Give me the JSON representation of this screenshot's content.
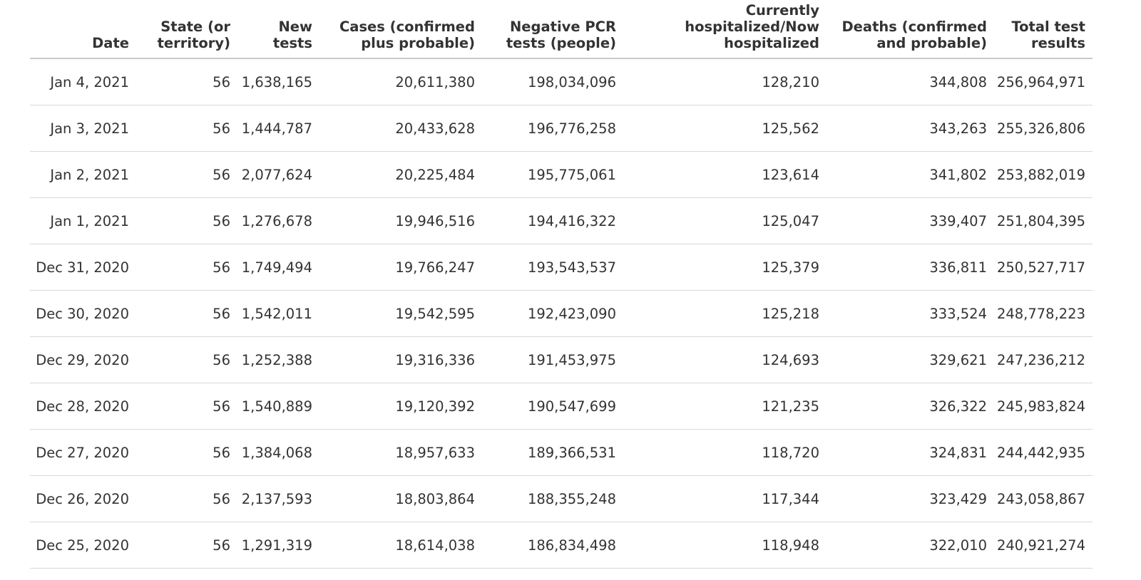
{
  "table": {
    "headers": [
      [
        "Date"
      ],
      [
        "State (or",
        "territory)"
      ],
      [
        "New",
        "tests"
      ],
      [
        "Cases (confirmed",
        "plus probable)"
      ],
      [
        "Negative PCR",
        "tests (people)"
      ],
      [
        "Currently",
        "hospitalized/Now",
        "hospitalized"
      ],
      [
        "Deaths (confirmed",
        "and probable)"
      ],
      [
        "Total test",
        "results"
      ]
    ],
    "rows": [
      [
        "Jan 4, 2021",
        "56",
        "1,638,165",
        "20,611,380",
        "198,034,096",
        "128,210",
        "344,808",
        "256,964,971"
      ],
      [
        "Jan 3, 2021",
        "56",
        "1,444,787",
        "20,433,628",
        "196,776,258",
        "125,562",
        "343,263",
        "255,326,806"
      ],
      [
        "Jan 2, 2021",
        "56",
        "2,077,624",
        "20,225,484",
        "195,775,061",
        "123,614",
        "341,802",
        "253,882,019"
      ],
      [
        "Jan 1, 2021",
        "56",
        "1,276,678",
        "19,946,516",
        "194,416,322",
        "125,047",
        "339,407",
        "251,804,395"
      ],
      [
        "Dec 31, 2020",
        "56",
        "1,749,494",
        "19,766,247",
        "193,543,537",
        "125,379",
        "336,811",
        "250,527,717"
      ],
      [
        "Dec 30, 2020",
        "56",
        "1,542,011",
        "19,542,595",
        "192,423,090",
        "125,218",
        "333,524",
        "248,778,223"
      ],
      [
        "Dec 29, 2020",
        "56",
        "1,252,388",
        "19,316,336",
        "191,453,975",
        "124,693",
        "329,621",
        "247,236,212"
      ],
      [
        "Dec 28, 2020",
        "56",
        "1,540,889",
        "19,120,392",
        "190,547,699",
        "121,235",
        "326,322",
        "245,983,824"
      ],
      [
        "Dec 27, 2020",
        "56",
        "1,384,068",
        "18,957,633",
        "189,366,531",
        "118,720",
        "324,831",
        "244,442,935"
      ],
      [
        "Dec 26, 2020",
        "56",
        "2,137,593",
        "18,803,864",
        "188,355,248",
        "117,344",
        "323,429",
        "243,058,867"
      ],
      [
        "Dec 25, 2020",
        "56",
        "1,291,319",
        "18,614,038",
        "186,834,498",
        "118,948",
        "322,010",
        "240,921,274"
      ]
    ]
  }
}
